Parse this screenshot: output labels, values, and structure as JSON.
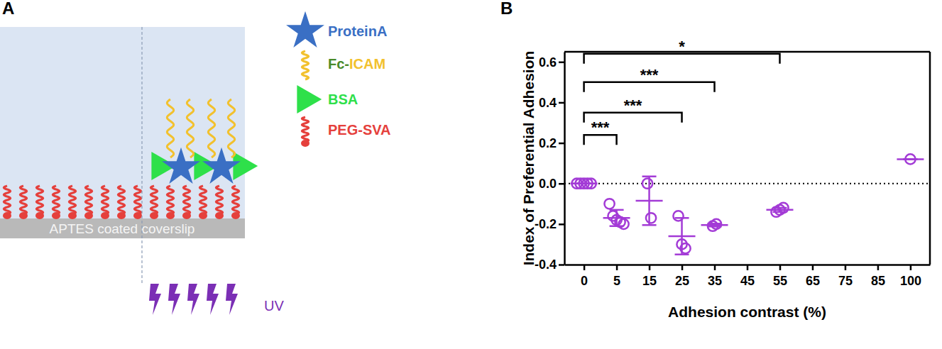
{
  "diagram": {
    "panel_label": "A",
    "substrate": "APTES coated coverslip",
    "light": "UV",
    "legend": [
      {
        "label": "ProteinA"
      },
      {
        "label_parts": [
          "Fc-",
          "ICAM"
        ]
      },
      {
        "label": "BSA"
      },
      {
        "label": "PEG-SVA"
      }
    ]
  },
  "chart_data": {
    "type": "scatter",
    "panel_label": "B",
    "xlabel": "Adhesion contrast (%)",
    "ylabel": "Index of Preferential Adhesion",
    "color": "#a33bd6",
    "marker": "circle",
    "categories": [
      "0",
      "5",
      "15",
      "25",
      "35",
      "45",
      "55",
      "65",
      "75",
      "85",
      "100"
    ],
    "points": [
      [
        0,
        0,
        0,
        0,
        0
      ],
      [
        -0.1,
        -0.16,
        -0.18,
        -0.19,
        -0.2
      ],
      [
        0.0,
        -0.17
      ],
      [
        -0.16,
        -0.3,
        -0.32
      ],
      [
        -0.21,
        -0.2
      ],
      [],
      [
        -0.14,
        -0.13,
        -0.12
      ],
      [],
      [],
      [],
      [
        0.12
      ]
    ],
    "means": [
      0,
      -0.17,
      -0.085,
      -0.26,
      -0.205,
      null,
      -0.13,
      null,
      null,
      null,
      0.12
    ],
    "errors": [
      0,
      0.04,
      0.12,
      0.09,
      0.007,
      null,
      0.01,
      null,
      null,
      null,
      0
    ],
    "ylim": [
      -0.4,
      0.65
    ],
    "yticks": [
      -0.4,
      -0.2,
      {
        "value": 0,
        "label": "0.0"
      },
      0.2,
      0.4,
      0.6
    ],
    "reference_line": 0,
    "annotations": [
      {
        "text": "***",
        "from": "0",
        "to": "5",
        "y": 0.24
      },
      {
        "text": "***",
        "from": "0",
        "to": "25",
        "y": 0.35
      },
      {
        "text": "***",
        "from": "0",
        "to": "35",
        "y": 0.5
      },
      {
        "text": "*",
        "from": "0",
        "to": "55",
        "y": 0.64
      }
    ]
  }
}
